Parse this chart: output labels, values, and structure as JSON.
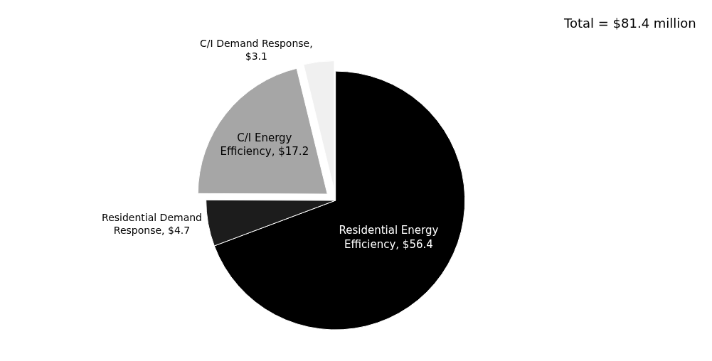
{
  "chart_data": {
    "type": "pie",
    "categories": [
      "Residential Energy Efficiency, $56.4",
      "Residential Demand Response, $4.7",
      "C/I Energy Efficiency, $17.2",
      "C/I Demand Response, $3.1"
    ],
    "values": [
      56.4,
      4.7,
      17.2,
      3.1
    ],
    "colors": [
      "#000000",
      "#1c1c1c",
      "#a6a6a6",
      "#f0f0f0"
    ],
    "annotations": [
      "Total = $81.4 million"
    ],
    "legend": false
  }
}
